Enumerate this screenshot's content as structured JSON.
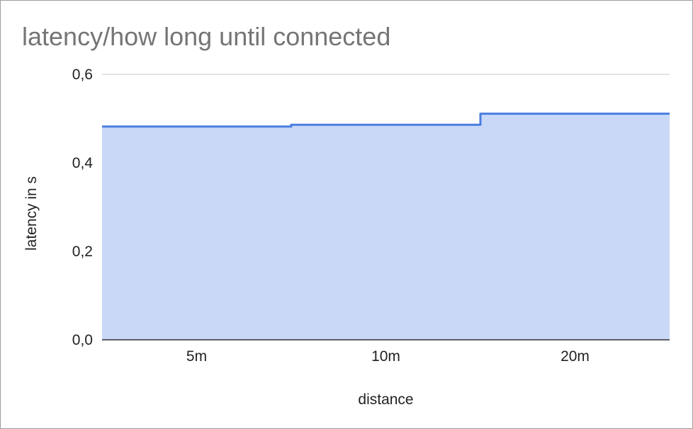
{
  "chart_data": {
    "type": "area",
    "title": "latency/how long until connected",
    "xlabel": "distance",
    "ylabel": "latency in s",
    "categories": [
      "5m",
      "10m",
      "20m"
    ],
    "series": [
      {
        "name": "latency in s",
        "values": [
          0.482,
          0.486,
          0.511
        ]
      }
    ],
    "ylim": [
      0,
      0.6
    ],
    "yticks": [
      "0,0",
      "0,2",
      "0,4",
      "0,6"
    ],
    "ytick_values": [
      0,
      0.2,
      0.4,
      0.6
    ],
    "grid": true,
    "legend": "none",
    "colors": {
      "line": "#4a7ee0",
      "fill": "#c9d8f7",
      "grid": "#c8c8c8",
      "baseline": "#333333",
      "title": "#757575"
    }
  }
}
